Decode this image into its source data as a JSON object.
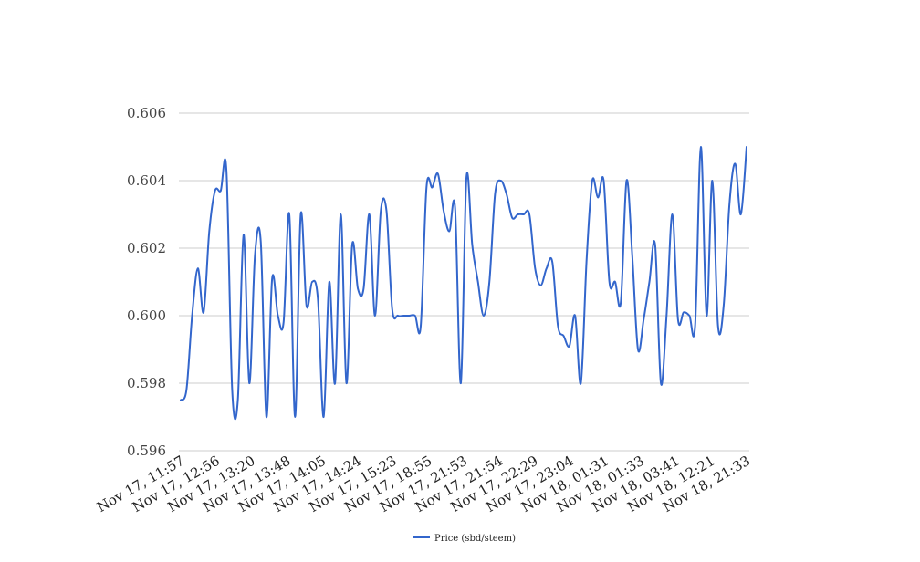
{
  "chart_data": {
    "type": "line",
    "title": "",
    "xlabel": "",
    "ylabel": "",
    "ylim": [
      0.596,
      0.606
    ],
    "yticks": [
      "0.596",
      "0.598",
      "0.600",
      "0.602",
      "0.604",
      "0.606"
    ],
    "grid": "horizontal",
    "legend_position": "bottom",
    "x_tick_labels": [
      "Nov 17, 11:57",
      "Nov 17, 12:56",
      "Nov 17, 13:20",
      "Nov 17, 13:48",
      "Nov 17, 14:05",
      "Nov 17, 14:24",
      "Nov 17, 15:23",
      "Nov 17, 18:55",
      "Nov 17, 21:53",
      "Nov 17, 21:54",
      "Nov 17, 22:29",
      "Nov 17, 23:04",
      "Nov 18, 01:31",
      "Nov 18, 01:33",
      "Nov 18, 03:41",
      "Nov 18, 12:21",
      "Nov 18, 21:33"
    ],
    "series": [
      {
        "name": "Price (sbd/steem)",
        "color": "#3366cc",
        "values": [
          0.5975,
          0.5978,
          0.6,
          0.6014,
          0.6001,
          0.6025,
          0.6037,
          0.6037,
          0.6043,
          0.5978,
          0.5975,
          0.6024,
          0.598,
          0.6018,
          0.6022,
          0.597,
          0.6011,
          0.6,
          0.5998,
          0.603,
          0.597,
          0.603,
          0.6003,
          0.601,
          0.6005,
          0.597,
          0.601,
          0.598,
          0.603,
          0.598,
          0.6021,
          0.6008,
          0.6008,
          0.603,
          0.6,
          0.6031,
          0.6031,
          0.6002,
          0.6,
          0.6,
          0.6,
          0.6,
          0.5997,
          0.6038,
          0.6038,
          0.6042,
          0.6031,
          0.6025,
          0.6032,
          0.598,
          0.6041,
          0.6021,
          0.601,
          0.6,
          0.601,
          0.6036,
          0.604,
          0.6036,
          0.6029,
          0.603,
          0.603,
          0.603,
          0.6014,
          0.6009,
          0.6014,
          0.6016,
          0.5997,
          0.5994,
          0.5991,
          0.6,
          0.598,
          0.6016,
          0.604,
          0.6035,
          0.604,
          0.601,
          0.601,
          0.6004,
          0.604,
          0.6018,
          0.599,
          0.5999,
          0.601,
          0.6021,
          0.598,
          0.6,
          0.603,
          0.5999,
          0.6001,
          0.6,
          0.5997,
          0.605,
          0.6,
          0.604,
          0.5997,
          0.6003,
          0.6033,
          0.6045,
          0.603,
          0.605
        ]
      }
    ]
  }
}
